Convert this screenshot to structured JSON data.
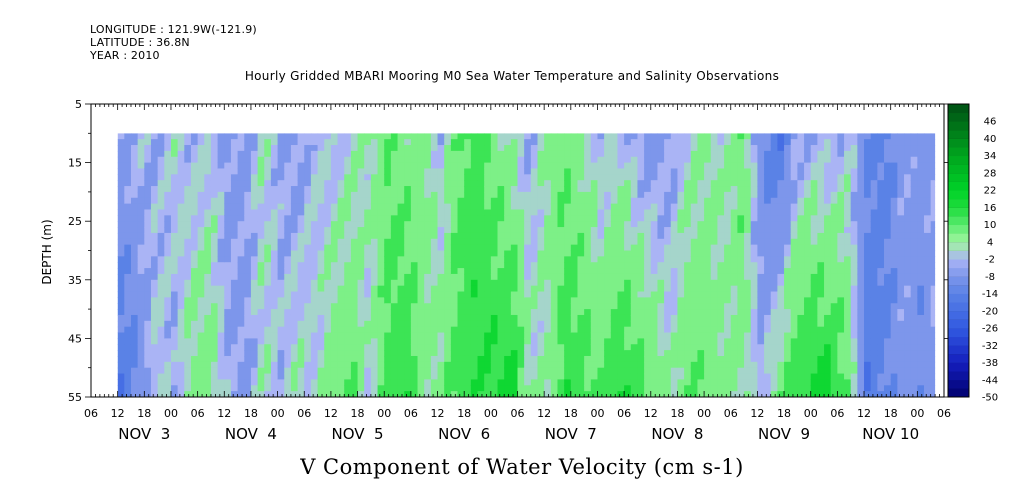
{
  "header": {
    "longitude": "LONGITUDE : 121.9W(-121.9)",
    "latitude": "LATITUDE : 36.8N",
    "year": "YEAR : 2010"
  },
  "chart_data": {
    "type": "heatmap",
    "title": "Hourly Gridded MBARI Mooring M0 Sea Water Temperature and Salinity Observations",
    "subtitle": "V Component of Water Velocity (cm s-1)",
    "ylabel": "DEPTH (m)",
    "xlabel": "",
    "y_ticks": [
      5,
      15,
      25,
      35,
      45,
      55
    ],
    "ylim": [
      5,
      55
    ],
    "y_reversed": true,
    "data_depth_range": [
      10,
      55
    ],
    "hour_ticks": [
      "06",
      "12",
      "18",
      "00",
      "06",
      "12",
      "18",
      "00",
      "06",
      "12",
      "18",
      "00",
      "06",
      "12",
      "18",
      "00",
      "06",
      "12",
      "18",
      "00",
      "06",
      "12",
      "18",
      "00",
      "06",
      "12",
      "18",
      "00",
      "06",
      "12",
      "18",
      "00",
      "06"
    ],
    "day_labels": [
      "NOV  3",
      "NOV  4",
      "NOV  5",
      "NOV  6",
      "NOV  7",
      "NOV  8",
      "NOV  9",
      "NOV 10"
    ],
    "time_range_hours": [
      0,
      192
    ],
    "data_time_range_hours": [
      6,
      190
    ],
    "colorbar": {
      "labels": [
        "46",
        "40",
        "34",
        "28",
        "22",
        "16",
        "10",
        "4",
        "-2",
        "-8",
        "-14",
        "-20",
        "-26",
        "-32",
        "-38",
        "-44",
        "-50"
      ],
      "range": [
        -50,
        52
      ],
      "step": 3
    },
    "profile": {
      "hours": [
        6,
        10,
        14,
        18,
        22,
        26,
        30,
        34,
        38,
        42,
        46,
        50,
        54,
        58,
        62,
        66,
        70,
        74,
        78,
        82,
        86,
        90,
        94,
        98,
        102,
        106,
        110,
        114,
        118,
        122,
        126,
        130,
        134,
        138,
        142,
        146,
        150,
        154,
        158,
        162,
        166,
        170,
        174,
        178,
        182,
        186,
        190
      ],
      "surface_v": [
        -4,
        -1,
        -3,
        1,
        -2,
        0,
        -5,
        -4,
        2,
        -3,
        -5,
        0,
        -2,
        1,
        3,
        8,
        5,
        6,
        -1,
        9,
        12,
        6,
        2,
        -3,
        5,
        7,
        3,
        -2,
        1,
        -4,
        -6,
        -3,
        1,
        4,
        1,
        9,
        -8,
        -16,
        -4,
        -2,
        -3,
        0,
        -9,
        -12,
        -4,
        -6,
        -3
      ],
      "bottom_v": [
        -14,
        -10,
        2,
        -3,
        6,
        7,
        -2,
        -5,
        2,
        -1,
        3,
        0,
        8,
        10,
        -1,
        12,
        16,
        4,
        6,
        12,
        14,
        16,
        18,
        3,
        2,
        14,
        12,
        9,
        16,
        13,
        8,
        2,
        10,
        7,
        5,
        4,
        -2,
        8,
        14,
        16,
        18,
        6,
        -14,
        -10,
        -5,
        -8,
        -3
      ]
    }
  }
}
